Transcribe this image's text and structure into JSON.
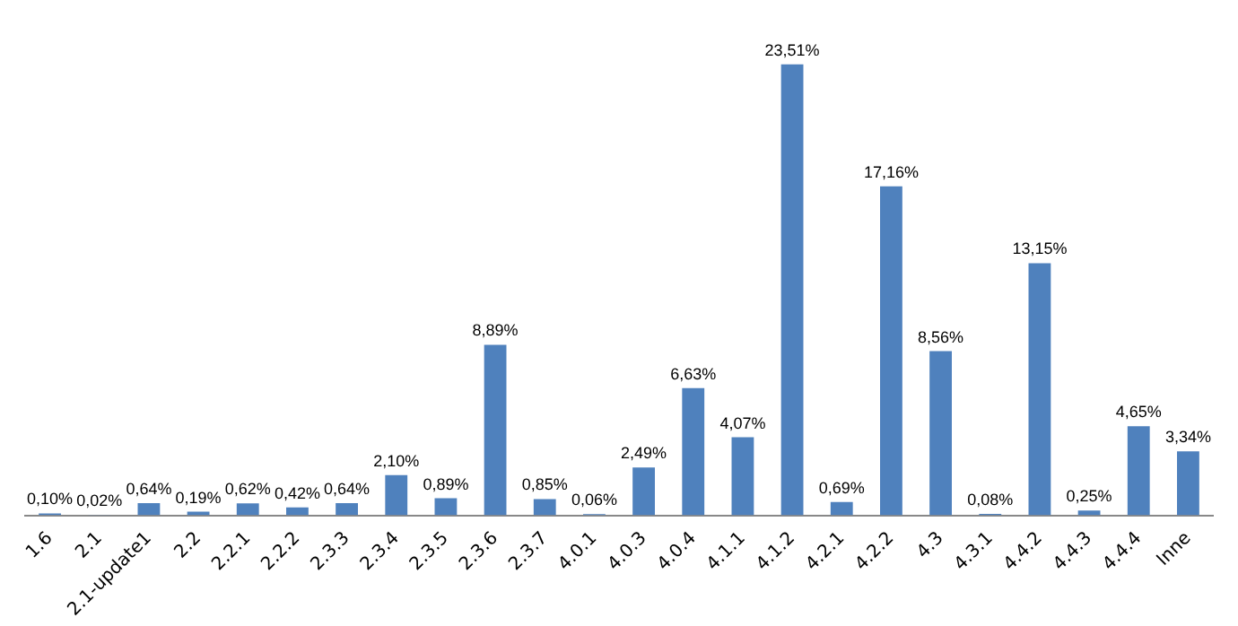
{
  "chart_data": {
    "type": "bar",
    "categories": [
      "1.6",
      "2.1",
      "2.1-update1",
      "2.2",
      "2.2.1",
      "2.2.2",
      "2.3.3",
      "2.3.4",
      "2.3.5",
      "2.3.6",
      "2.3.7",
      "4.0.1",
      "4.0.3",
      "4.0.4",
      "4.1.1",
      "4.1.2",
      "4.2.1",
      "4.2.2",
      "4.3",
      "4.3.1",
      "4.4.2",
      "4.4.3",
      "4.4.4",
      "Inne"
    ],
    "values": [
      0.1,
      0.02,
      0.64,
      0.19,
      0.62,
      0.42,
      0.64,
      2.1,
      0.89,
      8.89,
      0.85,
      0.06,
      2.49,
      6.63,
      4.07,
      23.51,
      0.69,
      17.16,
      8.56,
      0.08,
      13.15,
      0.25,
      4.65,
      3.34
    ],
    "value_labels": [
      "0,10%",
      "0,02%",
      "0,64%",
      "0,19%",
      "0,62%",
      "0,42%",
      "0,64%",
      "2,10%",
      "0,89%",
      "8,89%",
      "0,85%",
      "0,06%",
      "2,49%",
      "6,63%",
      "4,07%",
      "23,51%",
      "0,69%",
      "17,16%",
      "8,56%",
      "0,08%",
      "13,15%",
      "0,25%",
      "4,65%",
      "3,34%"
    ],
    "color": "#4f81bd",
    "grid": false,
    "legend": false,
    "tick_labels": "x"
  }
}
